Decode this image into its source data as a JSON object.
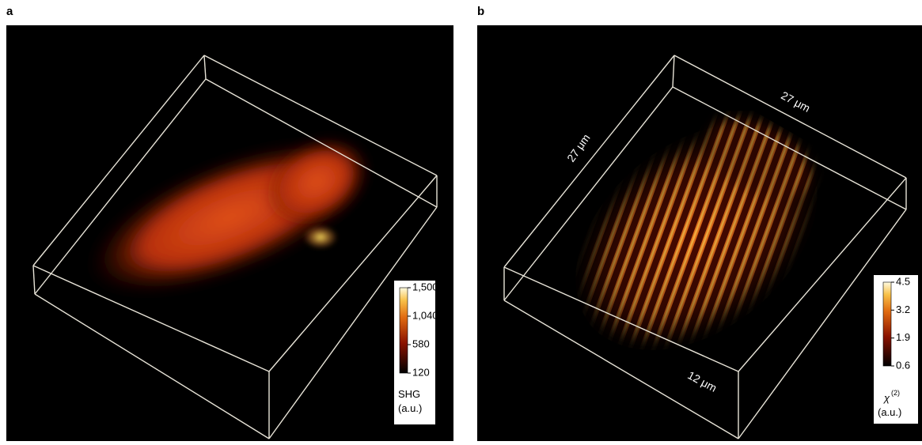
{
  "panels": [
    {
      "label": "a",
      "colorbar": {
        "lim": [
          120,
          1500
        ],
        "ticks": [
          {
            "value": 1500,
            "label": "1,500"
          },
          {
            "value": 1040,
            "label": "1,040"
          },
          {
            "value": 580,
            "label": "580"
          },
          {
            "value": 120,
            "label": "120"
          }
        ],
        "title": "SHG",
        "unit": "(a.u.)"
      }
    },
    {
      "label": "b",
      "scale_labels": [
        "27 μm",
        "27 μm",
        "12 μm"
      ],
      "colorbar": {
        "lim": [
          0.6,
          4.5
        ],
        "ticks": [
          4.5,
          3.2,
          1.9,
          0.6
        ],
        "symbol": "χ",
        "superscript": "(2)",
        "unit": "(a.u.)"
      }
    }
  ]
}
